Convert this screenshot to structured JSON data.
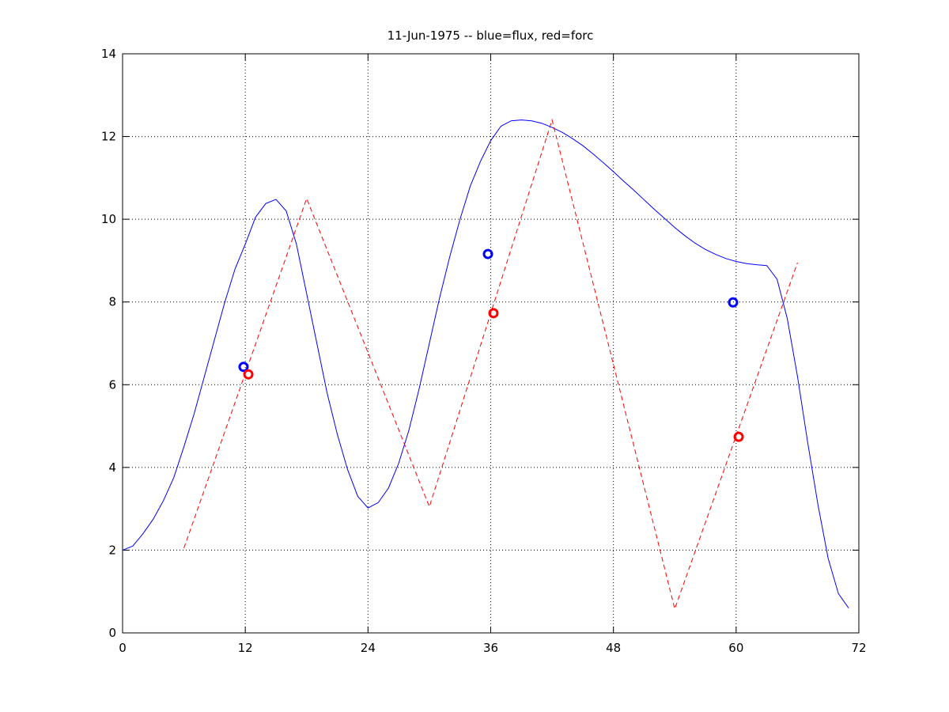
{
  "chart_data": {
    "type": "line",
    "title": "11-Jun-1975 -- blue=flux, red=forc",
    "xlim": [
      0,
      72
    ],
    "xticks": [
      0,
      12,
      24,
      36,
      48,
      60,
      72
    ],
    "ylim": [
      0,
      14
    ],
    "yticks": [
      0,
      2,
      4,
      6,
      8,
      10,
      12,
      14
    ],
    "grid": true,
    "series": [
      {
        "color": "#0000ff",
        "style": "solid",
        "x": [
          0,
          1,
          2,
          3,
          4,
          5,
          6,
          7,
          8,
          9,
          10,
          11,
          12,
          13,
          14,
          15,
          16,
          17,
          18,
          19,
          20,
          21,
          22,
          23,
          24,
          25,
          26,
          27,
          28,
          29,
          30,
          31,
          32,
          33,
          34,
          35,
          36,
          37,
          38,
          39,
          40,
          41,
          42,
          43,
          44,
          45,
          46,
          47,
          48,
          49,
          50,
          51,
          52,
          53,
          54,
          55,
          56,
          57,
          58,
          59,
          60,
          61,
          62,
          63,
          64,
          65,
          66,
          67,
          68,
          69,
          70,
          71
        ],
        "values": [
          2.0,
          2.1,
          2.4,
          2.75,
          3.2,
          3.75,
          4.5,
          5.3,
          6.2,
          7.1,
          8.0,
          8.8,
          9.4,
          10.05,
          10.38,
          10.48,
          10.2,
          9.4,
          8.2,
          7.0,
          5.8,
          4.8,
          3.95,
          3.3,
          3.02,
          3.15,
          3.5,
          4.1,
          4.9,
          5.9,
          7.0,
          8.1,
          9.1,
          10.0,
          10.8,
          11.4,
          11.9,
          12.25,
          12.38,
          12.4,
          12.38,
          12.32,
          12.22,
          12.1,
          11.95,
          11.78,
          11.58,
          11.37,
          11.15,
          10.92,
          10.7,
          10.47,
          10.24,
          10.02,
          9.8,
          9.6,
          9.42,
          9.27,
          9.15,
          9.05,
          8.98,
          8.93,
          8.9,
          8.88,
          8.55,
          7.6,
          6.2,
          4.6,
          3.1,
          1.8,
          0.95,
          0.6
        ]
      },
      {
        "color": "#ff0000",
        "style": "dashed",
        "x": [
          6,
          18,
          30,
          42,
          54,
          66
        ],
        "values": [
          2.05,
          10.5,
          3.05,
          12.4,
          0.58,
          8.95
        ]
      },
      {
        "color": "#0000ff",
        "style": "markers",
        "x": [
          11.83,
          35.73,
          59.7
        ],
        "values": [
          6.43,
          9.16,
          7.99
        ]
      },
      {
        "color": "#ff0000",
        "style": "markers",
        "x": [
          12.3,
          36.27,
          60.25
        ],
        "values": [
          6.25,
          7.73,
          4.74
        ]
      }
    ]
  }
}
